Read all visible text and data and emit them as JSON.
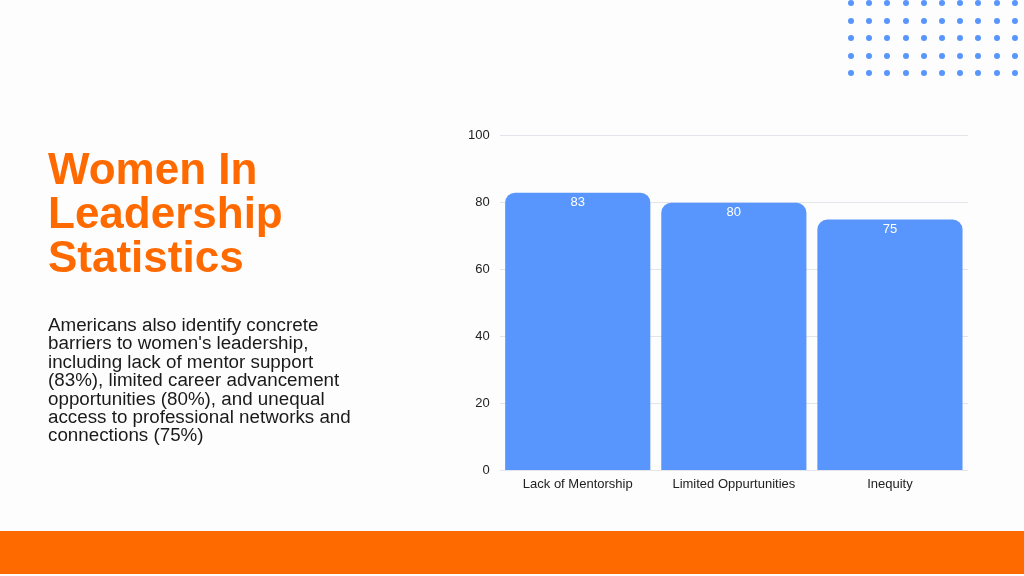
{
  "chart_data": {
    "type": "bar",
    "title": "Women In Leadership Statistics",
    "subtitle": "Americans also identify concrete barriers to women's leadership, including lack of mentor support (83%), limited career advancement opportunities (80%), and unequal access to professional networks and connections (75%)",
    "categories": [
      "Lack of Mentorship",
      "Limited Oppurtunities",
      "Inequity"
    ],
    "values": [
      83,
      80,
      75
    ],
    "color": "#5896fd",
    "ylim": [
      0,
      100
    ],
    "yticks": [
      0,
      20,
      40,
      60,
      80,
      100
    ],
    "grid": "y",
    "data_labels": true
  }
}
